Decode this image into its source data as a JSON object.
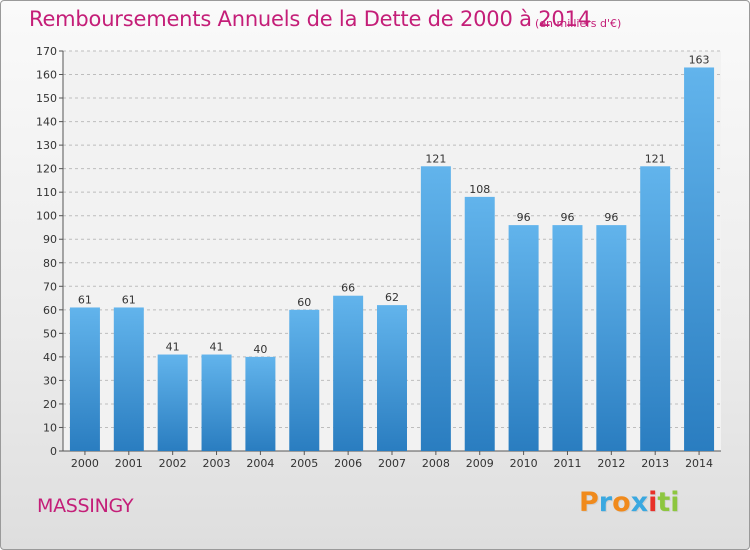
{
  "title": "Remboursements Annuels de la Dette de 2000 à 2014",
  "subtitle": "(en milliers d'€)",
  "commune": "MASSINGY",
  "logo": {
    "letters": [
      "P",
      "r",
      "o",
      "x",
      "i",
      "t",
      "i"
    ],
    "colors": [
      "#f08a1c",
      "#3aa8e0",
      "#f08a1c",
      "#3aa8e0",
      "#e8302a",
      "#8dc63f",
      "#8dc63f"
    ]
  },
  "colors": {
    "accent": "#c41e78",
    "bar_top": "#62b4ec",
    "bar_bottom": "#2a7dc0"
  },
  "chart_data": {
    "type": "bar",
    "title": "Remboursements Annuels de la Dette de 2000 à 2014",
    "categories": [
      "2000",
      "2001",
      "2002",
      "2003",
      "2004",
      "2005",
      "2006",
      "2007",
      "2008",
      "2009",
      "2010",
      "2011",
      "2012",
      "2013",
      "2014"
    ],
    "values": [
      61,
      61,
      41,
      41,
      40,
      60,
      66,
      62,
      121,
      108,
      96,
      96,
      96,
      121,
      163
    ],
    "ylim": [
      0,
      170
    ],
    "yticks": [
      0,
      10,
      20,
      30,
      40,
      50,
      60,
      70,
      80,
      90,
      100,
      110,
      120,
      130,
      140,
      150,
      160,
      170
    ],
    "grid": "horizontal dashed",
    "xlabel": "",
    "ylabel": ""
  }
}
